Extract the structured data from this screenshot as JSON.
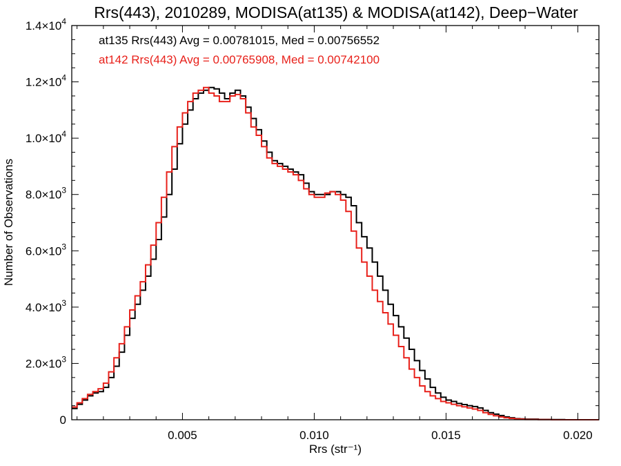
{
  "chart_data": {
    "type": "line",
    "title": "Rrs(443), 2010289, MODISA(at135) & MODISA(at142), Deep−Water",
    "xlabel": "Rrs (str⁻¹)",
    "ylabel": "Number of Observations",
    "xlim": [
      0.0008,
      0.0208
    ],
    "ylim": [
      0,
      14000
    ],
    "grid": false,
    "x_ticks": [
      {
        "value": 0.005,
        "label": "0.005"
      },
      {
        "value": 0.01,
        "label": "0.010"
      },
      {
        "value": 0.015,
        "label": "0.015"
      },
      {
        "value": 0.02,
        "label": "0.020"
      }
    ],
    "y_ticks": [
      {
        "value": 0,
        "mant": "0",
        "exp": ""
      },
      {
        "value": 2000,
        "mant": "2.0×10",
        "exp": "3"
      },
      {
        "value": 4000,
        "mant": "4.0×10",
        "exp": "3"
      },
      {
        "value": 6000,
        "mant": "6.0×10",
        "exp": "3"
      },
      {
        "value": 8000,
        "mant": "8.0×10",
        "exp": "3"
      },
      {
        "value": 10000,
        "mant": "1.0×10",
        "exp": "4"
      },
      {
        "value": 12000,
        "mant": "1.2×10",
        "exp": "4"
      },
      {
        "value": 14000,
        "mant": "1.4×10",
        "exp": "4"
      }
    ],
    "annotations": [
      {
        "text": "at135 Rrs(443) Avg = 0.00781015, Med = 0.00756552",
        "color": "#000000"
      },
      {
        "text": "at142 Rrs(443) Avg = 0.00765908, Med = 0.00742100",
        "color": "#e8201a"
      }
    ],
    "series": [
      {
        "color": "#000000",
        "x": [
          0.0008,
          0.001,
          0.0012,
          0.0014,
          0.0016,
          0.0018,
          0.002,
          0.0022,
          0.0024,
          0.0026,
          0.0028,
          0.003,
          0.0032,
          0.0034,
          0.0036,
          0.0038,
          0.004,
          0.0042,
          0.0044,
          0.0046,
          0.0048,
          0.005,
          0.0052,
          0.0054,
          0.0056,
          0.0058,
          0.006,
          0.0062,
          0.0064,
          0.0066,
          0.0068,
          0.007,
          0.0072,
          0.0074,
          0.0076,
          0.0078,
          0.008,
          0.0082,
          0.0084,
          0.0086,
          0.0088,
          0.009,
          0.0092,
          0.0094,
          0.0096,
          0.0098,
          0.01,
          0.0102,
          0.0104,
          0.0106,
          0.0108,
          0.011,
          0.0112,
          0.0114,
          0.0116,
          0.0118,
          0.012,
          0.0122,
          0.0124,
          0.0126,
          0.0128,
          0.013,
          0.0132,
          0.0134,
          0.0136,
          0.0138,
          0.014,
          0.0142,
          0.0144,
          0.0146,
          0.0148,
          0.015,
          0.0152,
          0.0154,
          0.0156,
          0.0158,
          0.016,
          0.0162,
          0.0164,
          0.0166,
          0.0168,
          0.017,
          0.0172,
          0.0174,
          0.0176,
          0.0178,
          0.018,
          0.0185,
          0.019,
          0.0195,
          0.02,
          0.0205,
          0.0208
        ],
        "values": [
          400,
          550,
          700,
          850,
          950,
          1000,
          1150,
          1500,
          1900,
          2400,
          3000,
          3600,
          4100,
          4600,
          5100,
          5700,
          6400,
          7200,
          8000,
          8900,
          9800,
          10500,
          11000,
          11400,
          11600,
          11700,
          11800,
          11750,
          11600,
          11400,
          11600,
          11700,
          11500,
          11100,
          10700,
          10300,
          9900,
          9500,
          9200,
          9100,
          9000,
          8900,
          8800,
          8700,
          8400,
          8100,
          8000,
          8000,
          8000,
          8100,
          8100,
          8000,
          7900,
          7600,
          7000,
          6500,
          6100,
          5600,
          5100,
          4600,
          4100,
          3700,
          3300,
          2900,
          2500,
          2100,
          1750,
          1450,
          1150,
          950,
          800,
          700,
          650,
          580,
          540,
          500,
          470,
          420,
          330,
          250,
          200,
          150,
          100,
          70,
          40,
          30,
          20,
          10,
          5,
          0,
          0,
          0,
          0
        ]
      },
      {
        "color": "#e8201a",
        "x": [
          0.0008,
          0.001,
          0.0012,
          0.0014,
          0.0016,
          0.0018,
          0.002,
          0.0022,
          0.0024,
          0.0026,
          0.0028,
          0.003,
          0.0032,
          0.0034,
          0.0036,
          0.0038,
          0.004,
          0.0042,
          0.0044,
          0.0046,
          0.0048,
          0.005,
          0.0052,
          0.0054,
          0.0056,
          0.0058,
          0.006,
          0.0062,
          0.0064,
          0.0066,
          0.0068,
          0.007,
          0.0072,
          0.0074,
          0.0076,
          0.0078,
          0.008,
          0.0082,
          0.0084,
          0.0086,
          0.0088,
          0.009,
          0.0092,
          0.0094,
          0.0096,
          0.0098,
          0.01,
          0.0102,
          0.0104,
          0.0106,
          0.0108,
          0.011,
          0.0112,
          0.0114,
          0.0116,
          0.0118,
          0.012,
          0.0122,
          0.0124,
          0.0126,
          0.0128,
          0.013,
          0.0132,
          0.0134,
          0.0136,
          0.0138,
          0.014,
          0.0142,
          0.0144,
          0.0146,
          0.0148,
          0.015,
          0.0152,
          0.0154,
          0.0156,
          0.0158,
          0.016,
          0.0162,
          0.0164,
          0.0166,
          0.0168,
          0.017,
          0.0172,
          0.0174,
          0.0176,
          0.0178,
          0.018,
          0.0185,
          0.019,
          0.0195,
          0.02,
          0.0205,
          0.0208
        ],
        "values": [
          450,
          600,
          750,
          900,
          1000,
          1100,
          1300,
          1700,
          2200,
          2700,
          3300,
          3900,
          4400,
          4900,
          5500,
          6200,
          7000,
          7900,
          8800,
          9700,
          10400,
          10900,
          11300,
          11600,
          11700,
          11800,
          11600,
          11500,
          11300,
          11300,
          11500,
          11550,
          11400,
          10900,
          10400,
          10100,
          9700,
          9300,
          9100,
          9000,
          8900,
          8800,
          8700,
          8500,
          8200,
          8000,
          7900,
          7900,
          8050,
          8100,
          8000,
          7800,
          7400,
          6700,
          6100,
          5600,
          5100,
          4600,
          4200,
          3800,
          3400,
          3000,
          2600,
          2200,
          1800,
          1500,
          1200,
          1000,
          850,
          750,
          650,
          600,
          550,
          500,
          460,
          420,
          380,
          330,
          250,
          190,
          140,
          100,
          70,
          50,
          30,
          20,
          10,
          5,
          0,
          0,
          0,
          0,
          0
        ]
      }
    ]
  }
}
